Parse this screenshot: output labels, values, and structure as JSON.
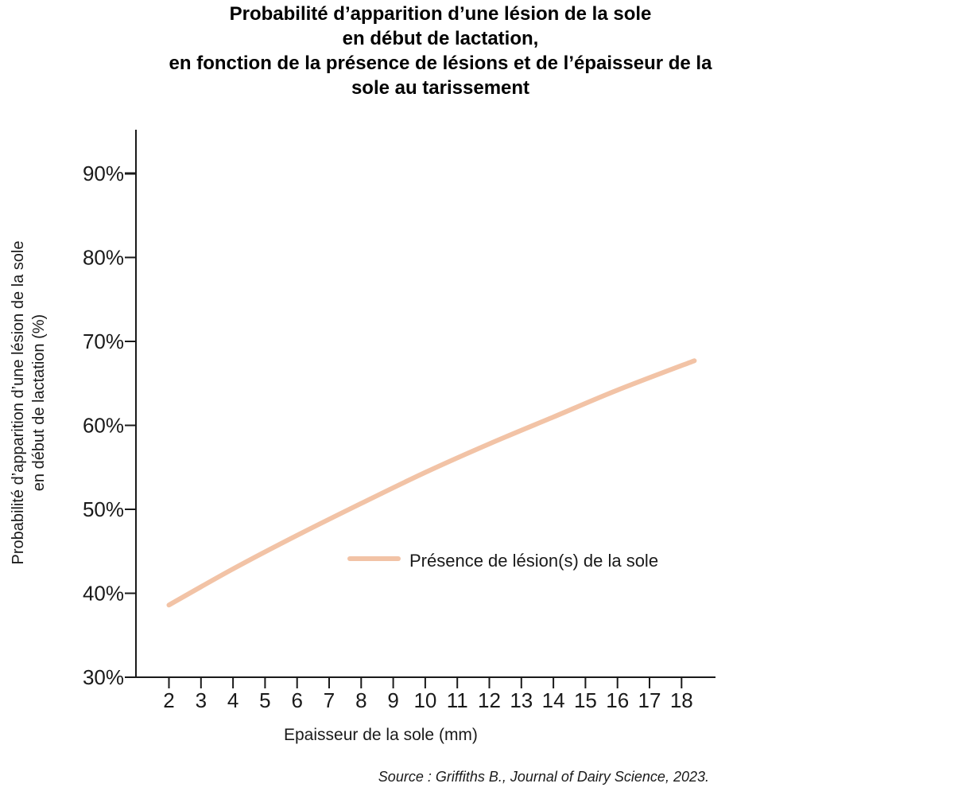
{
  "chart_data": {
    "type": "line",
    "title_lines": [
      "Probabilité d’apparition d’une lésion de la sole",
      "en début de lactation,",
      "en fonction de la présence de lésions et de l’épaisseur de la",
      "sole au tarissement"
    ],
    "ylabel_lines": [
      "Probabilité d’apparition d’une lésion de la sole",
      "en début de lactation (%)"
    ],
    "xlabel": "Epaisseur de la sole (mm)",
    "source": "Source : Griffiths B., Journal of Dairy Science, 2023.",
    "x_ticks": [
      2,
      3,
      4,
      5,
      6,
      7,
      8,
      9,
      10,
      11,
      12,
      13,
      14,
      15,
      16,
      17,
      18
    ],
    "y_ticks": [
      30,
      40,
      50,
      60,
      70,
      80,
      90
    ],
    "y_tick_labels": [
      "30%",
      "40%",
      "50%",
      "60%",
      "70%",
      "80%",
      "90%"
    ],
    "ylim": [
      30,
      95
    ],
    "grid": false,
    "legend_position": "center-right",
    "series": [
      {
        "name": "Présence de lésion(s) de la sole",
        "color": "#f2c3a6",
        "x": [
          2,
          4,
          6,
          8,
          10,
          12,
          14,
          16,
          18.4
        ],
        "y": [
          38.6,
          42.9,
          46.9,
          50.7,
          54.4,
          57.8,
          61.0,
          64.2,
          67.7
        ]
      }
    ]
  }
}
